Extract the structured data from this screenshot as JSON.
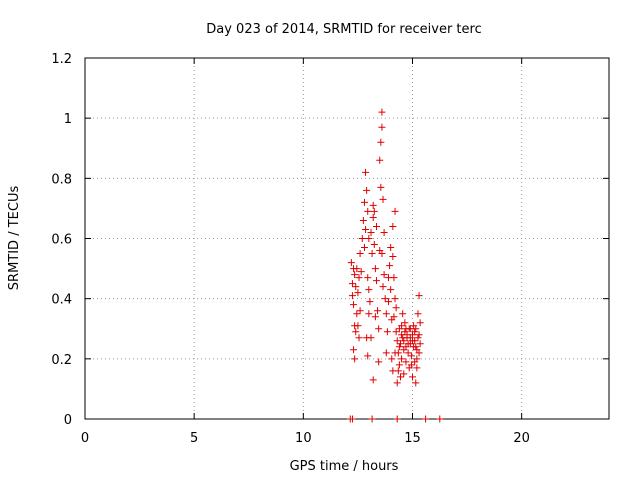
{
  "chart_data": {
    "type": "scatter",
    "title": "Day 023 of 2014, SRMTID for receiver terc",
    "xlabel": "GPS time / hours",
    "ylabel": "SRMTID / TECUs",
    "xlim": [
      0,
      24
    ],
    "ylim": [
      0,
      1.2
    ],
    "xticks": [
      0,
      5,
      10,
      15,
      20
    ],
    "xtick_labels": [
      "0",
      "5",
      "10",
      "15",
      "20"
    ],
    "yticks": [
      0,
      0.2,
      0.4,
      0.6,
      0.8,
      1.0,
      1.2
    ],
    "ytick_labels": [
      "0",
      "0.2",
      "0.4",
      "0.6",
      "0.8",
      "1",
      "1.2"
    ],
    "grid": true,
    "marker": "plus",
    "color": "#e00000",
    "series": [
      {
        "name": "SRMTID",
        "points": [
          [
            12.15,
            0.0
          ],
          [
            12.25,
            0.0
          ],
          [
            13.15,
            0.0
          ],
          [
            14.3,
            0.0
          ],
          [
            15.6,
            0.0
          ],
          [
            16.25,
            0.0
          ],
          [
            12.2,
            0.52
          ],
          [
            12.25,
            0.45
          ],
          [
            12.3,
            0.5
          ],
          [
            12.3,
            0.38
          ],
          [
            12.35,
            0.48
          ],
          [
            12.35,
            0.31
          ],
          [
            12.4,
            0.44
          ],
          [
            12.4,
            0.29
          ],
          [
            12.45,
            0.5
          ],
          [
            12.45,
            0.35
          ],
          [
            12.5,
            0.42
          ],
          [
            12.55,
            0.47
          ],
          [
            12.6,
            0.36
          ],
          [
            12.6,
            0.55
          ],
          [
            12.3,
            0.23
          ],
          [
            12.35,
            0.2
          ],
          [
            12.25,
            0.41
          ],
          [
            12.5,
            0.31
          ],
          [
            12.55,
            0.27
          ],
          [
            12.65,
            0.49
          ],
          [
            12.7,
            0.6
          ],
          [
            12.75,
            0.66
          ],
          [
            12.8,
            0.57
          ],
          [
            12.8,
            0.72
          ],
          [
            12.85,
            0.63
          ],
          [
            12.85,
            0.82
          ],
          [
            12.9,
            0.76
          ],
          [
            12.95,
            0.69
          ],
          [
            12.95,
            0.47
          ],
          [
            13.0,
            0.43
          ],
          [
            13.0,
            0.6
          ],
          [
            13.05,
            0.39
          ],
          [
            12.9,
            0.27
          ],
          [
            12.95,
            0.21
          ],
          [
            13.0,
            0.35
          ],
          [
            13.1,
            0.62
          ],
          [
            13.15,
            0.55
          ],
          [
            13.2,
            0.67
          ],
          [
            13.2,
            0.71
          ],
          [
            13.25,
            0.69
          ],
          [
            13.25,
            0.58
          ],
          [
            13.3,
            0.5
          ],
          [
            13.35,
            0.64
          ],
          [
            13.35,
            0.46
          ],
          [
            13.4,
            0.36
          ],
          [
            13.45,
            0.3
          ],
          [
            13.5,
            0.56
          ],
          [
            13.5,
            0.86
          ],
          [
            13.55,
            0.92
          ],
          [
            13.55,
            0.77
          ],
          [
            13.6,
            1.02
          ],
          [
            13.6,
            0.97
          ],
          [
            13.65,
            0.73
          ],
          [
            13.6,
            0.55
          ],
          [
            13.65,
            0.44
          ],
          [
            13.7,
            0.62
          ],
          [
            13.7,
            0.48
          ],
          [
            13.75,
            0.4
          ],
          [
            13.8,
            0.35
          ],
          [
            13.85,
            0.29
          ],
          [
            13.9,
            0.47
          ],
          [
            13.9,
            0.39
          ],
          [
            13.95,
            0.51
          ],
          [
            14.0,
            0.57
          ],
          [
            14.0,
            0.43
          ],
          [
            14.05,
            0.33
          ],
          [
            14.1,
            0.64
          ],
          [
            14.1,
            0.54
          ],
          [
            14.15,
            0.47
          ],
          [
            14.2,
            0.69
          ],
          [
            14.2,
            0.4
          ],
          [
            14.25,
            0.29
          ],
          [
            14.05,
            0.2
          ],
          [
            14.1,
            0.16
          ],
          [
            14.2,
            0.22
          ],
          [
            13.2,
            0.13
          ],
          [
            13.3,
            0.34
          ],
          [
            13.45,
            0.19
          ],
          [
            13.1,
            0.27
          ],
          [
            13.8,
            0.22
          ],
          [
            14.3,
            0.26
          ],
          [
            14.35,
            0.22
          ],
          [
            14.4,
            0.3
          ],
          [
            14.4,
            0.18
          ],
          [
            14.45,
            0.25
          ],
          [
            14.5,
            0.2
          ],
          [
            14.5,
            0.31
          ],
          [
            14.55,
            0.27
          ],
          [
            14.6,
            0.23
          ],
          [
            14.6,
            0.15
          ],
          [
            14.65,
            0.29
          ],
          [
            14.7,
            0.24
          ],
          [
            14.7,
            0.19
          ],
          [
            14.75,
            0.27
          ],
          [
            14.8,
            0.22
          ],
          [
            14.85,
            0.3
          ],
          [
            14.85,
            0.17
          ],
          [
            14.9,
            0.25
          ],
          [
            14.95,
            0.21
          ],
          [
            15.0,
            0.28
          ],
          [
            15.0,
            0.14
          ],
          [
            15.05,
            0.24
          ],
          [
            15.1,
            0.26
          ],
          [
            15.1,
            0.19
          ],
          [
            15.15,
            0.3
          ],
          [
            15.2,
            0.23
          ],
          [
            15.2,
            0.17
          ],
          [
            15.25,
            0.35
          ],
          [
            15.3,
            0.41
          ],
          [
            15.3,
            0.28
          ],
          [
            15.35,
            0.25
          ],
          [
            15.35,
            0.32
          ],
          [
            14.3,
            0.12
          ],
          [
            14.45,
            0.14
          ],
          [
            14.55,
            0.35
          ],
          [
            14.65,
            0.32
          ],
          [
            14.75,
            0.28
          ],
          [
            14.9,
            0.27
          ],
          [
            15.05,
            0.31
          ],
          [
            15.15,
            0.12
          ],
          [
            14.4,
            0.24
          ],
          [
            14.5,
            0.28
          ],
          [
            14.6,
            0.26
          ],
          [
            14.7,
            0.3
          ],
          [
            14.8,
            0.25
          ],
          [
            14.9,
            0.3
          ],
          [
            15.0,
            0.26
          ],
          [
            15.1,
            0.29
          ],
          [
            15.25,
            0.27
          ],
          [
            15.2,
            0.2
          ],
          [
            14.35,
            0.16
          ],
          [
            14.95,
            0.18
          ],
          [
            15.15,
            0.24
          ],
          [
            15.3,
            0.22
          ],
          [
            14.25,
            0.37
          ],
          [
            14.15,
            0.34
          ]
        ]
      }
    ]
  }
}
